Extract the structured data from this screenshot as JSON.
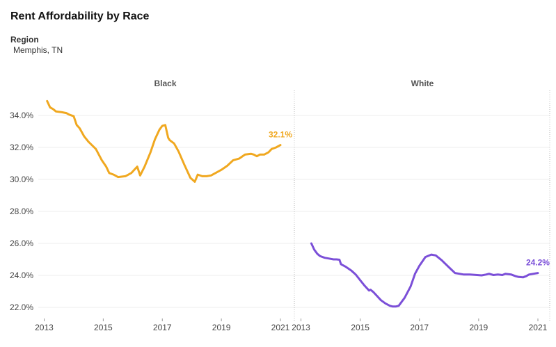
{
  "title": "Rent Affordability by Race",
  "filter": {
    "label": "Region",
    "value": "Memphis, TN"
  },
  "chart_data": {
    "type": "line",
    "grid": true,
    "y_tick_labels": [
      "22.0%",
      "24.0%",
      "26.0%",
      "28.0%",
      "30.0%",
      "32.0%",
      "34.0%"
    ],
    "y_ticks": [
      22,
      24,
      26,
      28,
      30,
      32,
      34
    ],
    "ylim": [
      21.5,
      35.5
    ],
    "x_tick_labels": [
      "2013",
      "2015",
      "2017",
      "2019",
      "2021"
    ],
    "x_ticks": [
      2013,
      2015,
      2017,
      2019,
      2021
    ],
    "xlim": [
      2012.8,
      2021.4
    ],
    "panels": [
      {
        "title": "Black",
        "color": "#F0A820",
        "end_label": "32.1%",
        "x": [
          2013.1,
          2013.2,
          2013.3,
          2013.4,
          2013.6,
          2013.75,
          2013.85,
          2014.0,
          2014.1,
          2014.2,
          2014.35,
          2014.5,
          2014.75,
          2014.95,
          2015.1,
          2015.2,
          2015.35,
          2015.5,
          2015.75,
          2015.95,
          2016.15,
          2016.25,
          2016.4,
          2016.6,
          2016.75,
          2016.9,
          2017.0,
          2017.1,
          2017.2,
          2017.25,
          2017.4,
          2017.55,
          2017.75,
          2017.95,
          2018.1,
          2018.2,
          2018.35,
          2018.5,
          2018.65,
          2018.8,
          2019.0,
          2019.2,
          2019.4,
          2019.6,
          2019.8,
          2020.0,
          2020.1,
          2020.2,
          2020.3,
          2020.45,
          2020.6,
          2020.7,
          2020.85,
          2021.0
        ],
        "values": [
          34.9,
          34.5,
          34.4,
          34.25,
          34.2,
          34.15,
          34.05,
          33.95,
          33.4,
          33.2,
          32.7,
          32.35,
          31.9,
          31.2,
          30.8,
          30.4,
          30.3,
          30.15,
          30.2,
          30.4,
          30.8,
          30.25,
          30.8,
          31.7,
          32.5,
          33.1,
          33.35,
          33.4,
          32.6,
          32.45,
          32.25,
          31.75,
          30.9,
          30.1,
          29.85,
          30.3,
          30.2,
          30.2,
          30.25,
          30.4,
          30.6,
          30.85,
          31.2,
          31.3,
          31.55,
          31.6,
          31.55,
          31.45,
          31.55,
          31.55,
          31.7,
          31.9,
          32.0,
          32.15
        ]
      },
      {
        "title": "White",
        "color": "#7B4FD8",
        "end_label": "24.2%",
        "x": [
          2013.35,
          2013.45,
          2013.55,
          2013.65,
          2013.8,
          2013.95,
          2014.1,
          2014.2,
          2014.3,
          2014.35,
          2014.5,
          2014.7,
          2014.85,
          2015.0,
          2015.15,
          2015.3,
          2015.35,
          2015.45,
          2015.55,
          2015.7,
          2015.85,
          2016.0,
          2016.1,
          2016.2,
          2016.3,
          2016.5,
          2016.7,
          2016.85,
          2017.0,
          2017.2,
          2017.4,
          2017.55,
          2017.75,
          2018.0,
          2018.2,
          2018.35,
          2018.5,
          2018.7,
          2018.95,
          2019.1,
          2019.25,
          2019.35,
          2019.5,
          2019.65,
          2019.8,
          2019.9,
          2020.1,
          2020.25,
          2020.35,
          2020.5,
          2020.6,
          2020.7,
          2020.85,
          2021.0
        ],
        "values": [
          26.0,
          25.6,
          25.35,
          25.2,
          25.1,
          25.05,
          25.0,
          25.0,
          24.98,
          24.7,
          24.55,
          24.3,
          24.05,
          23.7,
          23.35,
          23.05,
          23.1,
          22.95,
          22.75,
          22.45,
          22.25,
          22.1,
          22.05,
          22.05,
          22.1,
          22.6,
          23.3,
          24.1,
          24.6,
          25.15,
          25.3,
          25.25,
          24.95,
          24.5,
          24.15,
          24.1,
          24.05,
          24.05,
          24.02,
          24.0,
          24.05,
          24.1,
          24.02,
          24.05,
          24.02,
          24.1,
          24.05,
          23.95,
          23.9,
          23.88,
          23.95,
          24.05,
          24.1,
          24.15
        ]
      }
    ]
  }
}
